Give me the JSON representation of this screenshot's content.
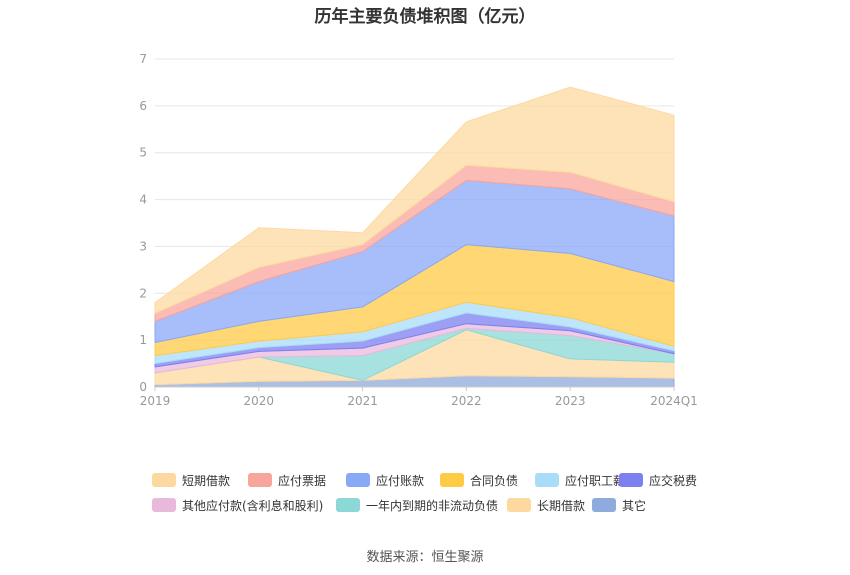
{
  "chart_data": {
    "type": "area",
    "stacked": true,
    "title": "历年主要负债堆积图（亿元）",
    "categories": [
      "2019",
      "2020",
      "2021",
      "2022",
      "2023",
      "2024Q1"
    ],
    "ylim": [
      0,
      7
    ],
    "yticks": [
      "0",
      "1",
      "2",
      "3",
      "4",
      "5",
      "6",
      "7"
    ],
    "grid": true,
    "legend_position": "bottom",
    "series": [
      {
        "name": "其它",
        "color": "#8faadc",
        "values": [
          0.05,
          0.12,
          0.14,
          0.24,
          0.22,
          0.19
        ]
      },
      {
        "name": "长期借款",
        "color": "#fdd9a0",
        "values": [
          0.25,
          0.52,
          0.0,
          0.98,
          0.38,
          0.34
        ]
      },
      {
        "name": "一年内到期的非流动负债",
        "color": "#8bd8d6",
        "values": [
          0.0,
          0.0,
          0.53,
          0.03,
          0.5,
          0.18
        ]
      },
      {
        "name": "其他应付款(含利息和股利)",
        "color": "#e9b9dc",
        "values": [
          0.13,
          0.12,
          0.16,
          0.1,
          0.1,
          0.0
        ]
      },
      {
        "name": "应交税费",
        "color": "#7b7ff0",
        "values": [
          0.07,
          0.08,
          0.15,
          0.23,
          0.08,
          0.06
        ]
      },
      {
        "name": "应付职工薪酬",
        "color": "#a8dcf8",
        "values": [
          0.17,
          0.14,
          0.2,
          0.23,
          0.2,
          0.1
        ]
      },
      {
        "name": "合同负债",
        "color": "#ffcb47",
        "values": [
          0.28,
          0.42,
          0.53,
          1.23,
          1.37,
          1.38
        ]
      },
      {
        "name": "应付账款",
        "color": "#8aa8f8",
        "values": [
          0.45,
          0.85,
          1.18,
          1.37,
          1.38,
          1.4
        ]
      },
      {
        "name": "应付票据",
        "color": "#f8a59b",
        "values": [
          0.17,
          0.3,
          0.15,
          0.32,
          0.35,
          0.3
        ]
      },
      {
        "name": "短期借款",
        "color": "#fdd9a0",
        "values": [
          0.23,
          0.85,
          0.25,
          0.93,
          1.82,
          1.85
        ]
      }
    ],
    "legend_order": [
      "短期借款",
      "应付票据",
      "应付账款",
      "合同负债",
      "应付职工薪酬",
      "应交税费",
      "其他应付款(含利息和股利)",
      "一年内到期的非流动负债",
      "长期借款",
      "其它"
    ]
  },
  "footer": {
    "source": "数据来源：恒生聚源"
  }
}
